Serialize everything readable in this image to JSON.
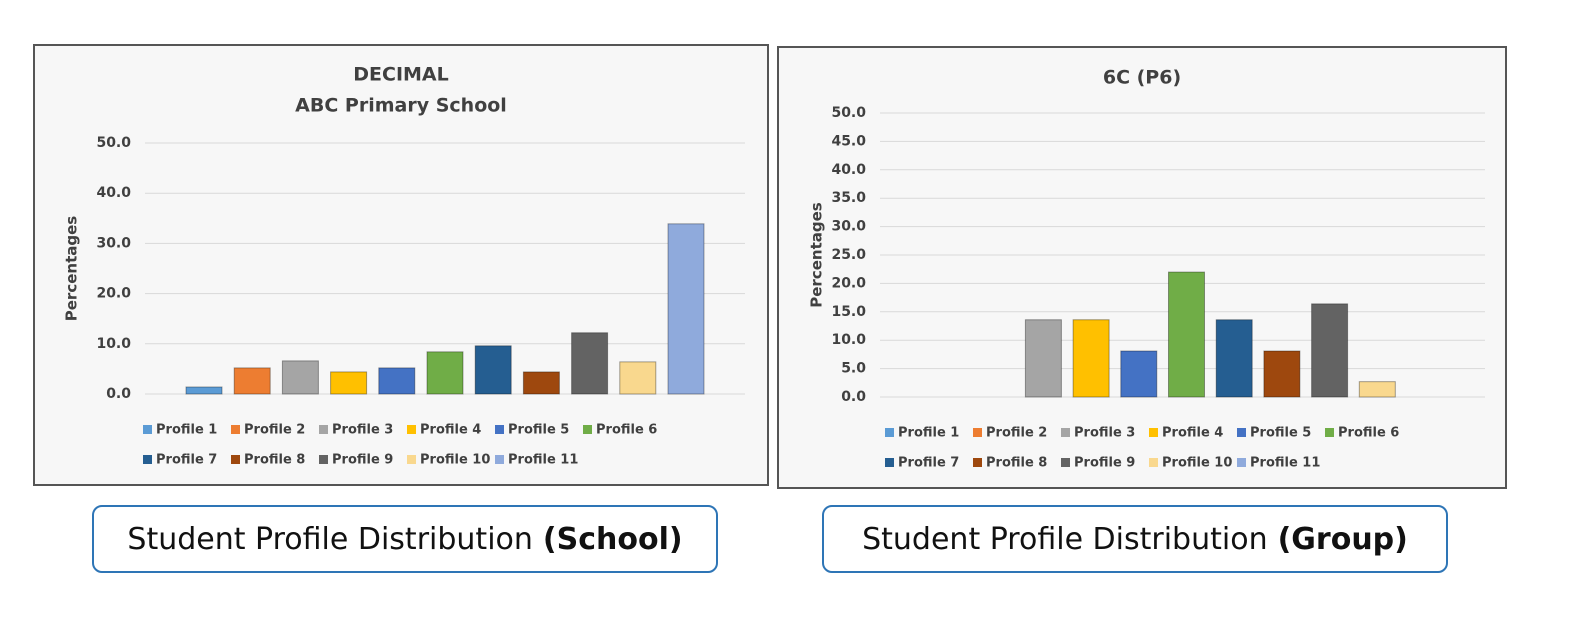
{
  "chart_data": [
    {
      "type": "bar",
      "title": "DECIMAL",
      "subtitle": "ABC Primary School",
      "ylabel": "Percentages",
      "ylim": [
        0,
        50
      ],
      "yticks": [
        {
          "value": 0,
          "label": "0.0"
        },
        {
          "value": 10,
          "label": "10.0"
        },
        {
          "value": 20,
          "label": "20.0"
        },
        {
          "value": 30,
          "label": "30.0"
        },
        {
          "value": 40,
          "label": "40.0"
        },
        {
          "value": 50,
          "label": "50.0"
        }
      ],
      "grid": true,
      "series": [
        {
          "name": "Profile 1",
          "color": "#5b9bd5",
          "values": [
            1.4
          ]
        },
        {
          "name": "Profile 2",
          "color": "#ed7d31",
          "values": [
            5.2
          ]
        },
        {
          "name": "Profile 3",
          "color": "#a5a5a5",
          "values": [
            6.6
          ]
        },
        {
          "name": "Profile 4",
          "color": "#ffc000",
          "values": [
            4.4
          ]
        },
        {
          "name": "Profile 5",
          "color": "#4472c4",
          "values": [
            5.2
          ]
        },
        {
          "name": "Profile 6",
          "color": "#70ad47",
          "values": [
            8.4
          ]
        },
        {
          "name": "Profile 7",
          "color": "#255e91",
          "values": [
            9.6
          ]
        },
        {
          "name": "Profile 8",
          "color": "#9e480e",
          "values": [
            4.4
          ]
        },
        {
          "name": "Profile 9",
          "color": "#636363",
          "values": [
            12.2
          ]
        },
        {
          "name": "Profile 10",
          "color": "#f9d88e",
          "values": [
            6.4
          ]
        },
        {
          "name": "Profile 11",
          "color": "#8faadc",
          "values": [
            33.9
          ]
        }
      ]
    },
    {
      "type": "bar",
      "title": "6C (P6)",
      "ylabel": "Percentages",
      "ylim": [
        0,
        50
      ],
      "yticks": [
        {
          "value": 0,
          "label": "0.0"
        },
        {
          "value": 5,
          "label": "5.0"
        },
        {
          "value": 10,
          "label": "10.0"
        },
        {
          "value": 15,
          "label": "15.0"
        },
        {
          "value": 20,
          "label": "20.0"
        },
        {
          "value": 25,
          "label": "25.0"
        },
        {
          "value": 30,
          "label": "30.0"
        },
        {
          "value": 35,
          "label": "35.0"
        },
        {
          "value": 40,
          "label": "40.0"
        },
        {
          "value": 45,
          "label": "45.0"
        },
        {
          "value": 50,
          "label": "50.0"
        }
      ],
      "grid": true,
      "series": [
        {
          "name": "Profile 1",
          "color": "#5b9bd5",
          "values": [
            0
          ]
        },
        {
          "name": "Profile 2",
          "color": "#ed7d31",
          "values": [
            0
          ]
        },
        {
          "name": "Profile 3",
          "color": "#a5a5a5",
          "values": [
            13.6
          ]
        },
        {
          "name": "Profile 4",
          "color": "#ffc000",
          "values": [
            13.6
          ]
        },
        {
          "name": "Profile 5",
          "color": "#4472c4",
          "values": [
            8.1
          ]
        },
        {
          "name": "Profile 6",
          "color": "#70ad47",
          "values": [
            22.0
          ]
        },
        {
          "name": "Profile 7",
          "color": "#255e91",
          "values": [
            13.6
          ]
        },
        {
          "name": "Profile 8",
          "color": "#9e480e",
          "values": [
            8.1
          ]
        },
        {
          "name": "Profile 9",
          "color": "#636363",
          "values": [
            16.4
          ]
        },
        {
          "name": "Profile 10",
          "color": "#f9d88e",
          "values": [
            2.7
          ]
        },
        {
          "name": "Profile 11",
          "color": "#8faadc",
          "values": [
            0
          ]
        }
      ]
    }
  ],
  "captions": [
    {
      "text": "Student Profile Distribution",
      "emphasis": "(School)"
    },
    {
      "text": "Student Profile Distribution",
      "emphasis": "(Group)"
    }
  ]
}
